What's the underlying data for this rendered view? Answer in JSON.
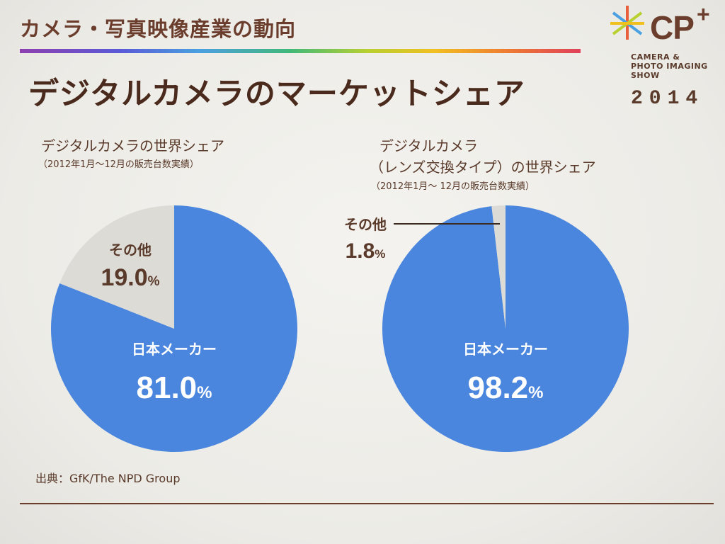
{
  "header": {
    "title": "カメラ・写真映像産業の動向",
    "slide_title": "デジタルカメラのマーケットシェア"
  },
  "logo": {
    "mark": "CP",
    "plus": "+",
    "subtitle": "CAMERA &\nPHOTO IMAGING\nSHOW",
    "year": "2014"
  },
  "colors": {
    "japan": "#4a86dd",
    "other": "#dcdbd6",
    "brown": "#6b3d2c"
  },
  "chart_data": [
    {
      "type": "pie",
      "title": "デジタルカメラの世界シェア",
      "note": "（2012年1月〜12月の販売台数実績）",
      "slices": [
        {
          "label": "日本メーカー",
          "value": 81.0,
          "display": "81.0",
          "unit": "%"
        },
        {
          "label": "その他",
          "value": 19.0,
          "display": "19.0",
          "unit": "%"
        }
      ]
    },
    {
      "type": "pie",
      "title_lines": [
        "デジタルカメラ",
        "（レンズ交換タイプ）の世界シェア"
      ],
      "note": "（2012年1月〜 12月の販売台数実績）",
      "slices": [
        {
          "label": "日本メーカー",
          "value": 98.2,
          "display": "98.2",
          "unit": "%"
        },
        {
          "label": "その他",
          "value": 1.8,
          "display": "1.8",
          "unit": "%"
        }
      ]
    }
  ],
  "footer": {
    "source": "出典：GfK/The NPD Group"
  }
}
